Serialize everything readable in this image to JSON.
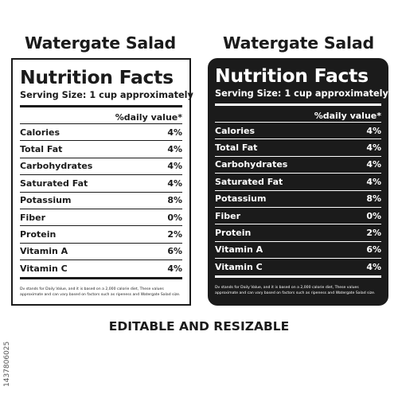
{
  "product_title": "Watergate Salad",
  "heading": "Nutrition Facts",
  "serving": "Serving Size:  1 cup approximately",
  "dv_header": "%daily value*",
  "nutrients": [
    {
      "name": "Calories",
      "value": "4%"
    },
    {
      "name": "Total Fat",
      "value": "4%"
    },
    {
      "name": "Carbohydrates",
      "value": "4%"
    },
    {
      "name": "Saturated Fat",
      "value": "4%"
    },
    {
      "name": "Potassium",
      "value": "8%"
    },
    {
      "name": "Fiber",
      "value": "0%"
    },
    {
      "name": "Protein",
      "value": "2%"
    },
    {
      "name": "Vitamin A",
      "value": "6%"
    },
    {
      "name": "Vitamin C",
      "value": "4%"
    }
  ],
  "footnote": "Dv stands for Daily Value, and it is based on a 2,000 calorie diet, These values approximate and can vary based on factors such as ripeness and Watergate Salad size.",
  "caption": "EDITABLE AND RESIZABLE",
  "stock_id": "1437806025",
  "colors": {
    "ink": "#1b1b1b",
    "paper": "#ffffff"
  }
}
